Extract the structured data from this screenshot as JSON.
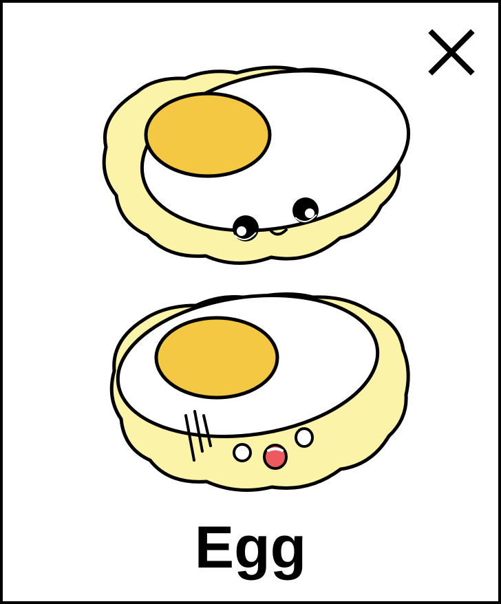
{
  "card": {
    "label": "Egg",
    "close_icon": "close-icon",
    "illustrations": [
      "egg-smiling-illustration",
      "egg-surprised-illustration"
    ]
  },
  "colors": {
    "border": "#000000",
    "egg_shell": "#fbf3a8",
    "egg_white": "#ffffff",
    "yolk": "#f4c843",
    "mouth": "#ec5a5f"
  }
}
